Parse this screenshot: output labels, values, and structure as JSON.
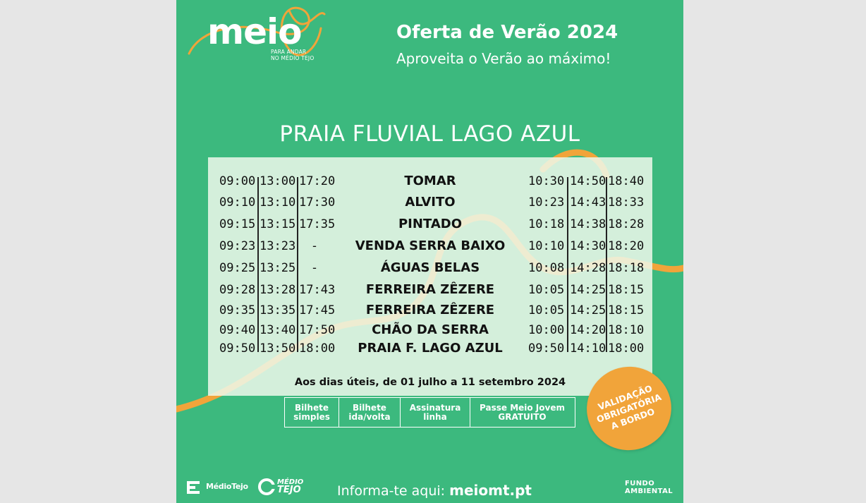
{
  "colors": {
    "brand_green": "#3cb97e",
    "accent_orange": "#f1a43a",
    "panel": "#eef8ea"
  },
  "logo": {
    "name": "meio",
    "tagline_line1": "PARA ANDAR",
    "tagline_line2": "NO MÉDIO TEJO"
  },
  "header": {
    "title": "Oferta de Verão 2024",
    "subtitle": "Aproveita o Verão ao máximo!"
  },
  "destination": "PRAIA FLUVIAL LAGO AZUL",
  "timetable": {
    "rows": [
      {
        "out": [
          "09:00",
          "13:00",
          "17:20"
        ],
        "stop": "TOMAR",
        "ret": [
          "10:30",
          "14:50",
          "18:40"
        ]
      },
      {
        "out": [
          "09:10",
          "13:10",
          "17:30"
        ],
        "stop": "ALVITO",
        "ret": [
          "10:23",
          "14:43",
          "18:33"
        ]
      },
      {
        "out": [
          "09:15",
          "13:15",
          "17:35"
        ],
        "stop": "PINTADO",
        "ret": [
          "10:18",
          "14:38",
          "18:28"
        ]
      },
      {
        "out": [
          "09:23",
          "13:23",
          "-"
        ],
        "stop": "VENDA SERRA BAIXO",
        "ret": [
          "10:10",
          "14:30",
          "18:20"
        ]
      },
      {
        "out": [
          "09:25",
          "13:25",
          "-"
        ],
        "stop": "ÁGUAS BELAS",
        "ret": [
          "10:08",
          "14:28",
          "18:18"
        ]
      },
      {
        "out": [
          "09:28",
          "13:28",
          "17:43"
        ],
        "stop": "FERREIRA ZÊZERE",
        "ret": [
          "10:05",
          "14:25",
          "18:15"
        ]
      },
      {
        "out": [
          "09:35",
          "13:35",
          "17:45"
        ],
        "stop": "FERREIRA ZÊZERE",
        "ret": [
          "10:05",
          "14:25",
          "18:15"
        ]
      },
      {
        "out": [
          "09:40",
          "13:40",
          "17:50"
        ],
        "stop": "CHÃO DA SERRA",
        "ret": [
          "10:00",
          "14:20",
          "18:10"
        ]
      },
      {
        "out": [
          "09:50",
          "13:50",
          "18:00"
        ],
        "stop": "PRAIA F. LAGO AZUL",
        "ret": [
          "09:50",
          "14:10",
          "18:00"
        ]
      }
    ],
    "note": "Aos dias úteis, de 01 julho a 11 setembro 2024"
  },
  "tickets": [
    {
      "line1": "Bilhete",
      "line2": "simples"
    },
    {
      "line1": "Bilhete",
      "line2": "ida/volta"
    },
    {
      "line1": "Assinatura",
      "line2": "linha"
    },
    {
      "line1": "Passe Meio Jovem",
      "line2": "GRATUITO"
    }
  ],
  "badge": {
    "line1": "VALIDAÇÃO",
    "line2": "OBRIGATÓRIA",
    "line3": "A BORDO"
  },
  "footer": {
    "info_label": "Informa-te aqui:",
    "info_url": "meiomt.pt",
    "partner1": "MédioTejo",
    "partner2_line1": "MÉDIO",
    "partner2_line2": "TEJO",
    "partner3_line1": "FUNDO",
    "partner3_line2": "AMBIENTAL"
  }
}
